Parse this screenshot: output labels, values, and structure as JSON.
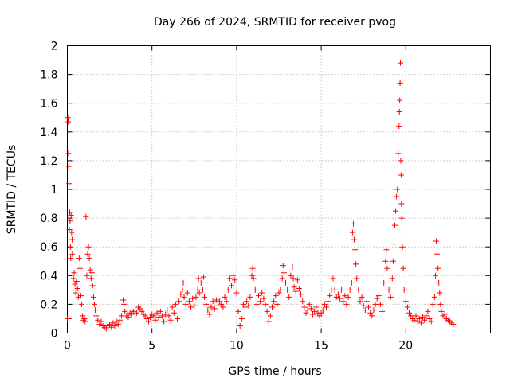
{
  "chart_data": {
    "type": "scatter",
    "title": "Day 266 of 2024, SRMTID for receiver pvog",
    "xlabel": "GPS time / hours",
    "ylabel": "SRMTID / TECUs",
    "xlim": [
      0,
      25
    ],
    "ylim": [
      0,
      2
    ],
    "xticks": [
      "0",
      "5",
      "10",
      "15",
      "20"
    ],
    "yticks": [
      "0",
      "0.2",
      "0.4",
      "0.6",
      "0.8",
      "1",
      "1.2",
      "1.4",
      "1.6",
      "1.8",
      "2"
    ],
    "grid": true,
    "marker": "+",
    "color": "#ff0000",
    "series": [
      {
        "name": "pvog",
        "points": [
          [
            0.0,
            0.1
          ],
          [
            0.03,
            1.5
          ],
          [
            0.05,
            1.47
          ],
          [
            0.07,
            1.25
          ],
          [
            0.08,
            1.16
          ],
          [
            0.1,
            1.04
          ],
          [
            0.1,
            0.1
          ],
          [
            0.12,
            0.72
          ],
          [
            0.14,
            0.84
          ],
          [
            0.16,
            0.78
          ],
          [
            0.18,
            0.6
          ],
          [
            0.2,
            0.52
          ],
          [
            0.22,
            0.82
          ],
          [
            0.25,
            0.7
          ],
          [
            0.28,
            0.65
          ],
          [
            0.3,
            0.55
          ],
          [
            0.33,
            0.46
          ],
          [
            0.36,
            0.38
          ],
          [
            0.4,
            0.42
          ],
          [
            0.45,
            0.34
          ],
          [
            0.5,
            0.28
          ],
          [
            0.55,
            0.36
          ],
          [
            0.6,
            0.31
          ],
          [
            0.65,
            0.25
          ],
          [
            0.7,
            0.52
          ],
          [
            0.75,
            0.45
          ],
          [
            0.8,
            0.26
          ],
          [
            0.85,
            0.2
          ],
          [
            0.9,
            0.12
          ],
          [
            0.95,
            0.09
          ],
          [
            1.0,
            0.1
          ],
          [
            1.05,
            0.08
          ],
          [
            1.1,
            0.81
          ],
          [
            1.15,
            0.4
          ],
          [
            1.2,
            0.55
          ],
          [
            1.25,
            0.6
          ],
          [
            1.3,
            0.52
          ],
          [
            1.35,
            0.44
          ],
          [
            1.4,
            0.38
          ],
          [
            1.45,
            0.42
          ],
          [
            1.5,
            0.33
          ],
          [
            1.55,
            0.25
          ],
          [
            1.6,
            0.2
          ],
          [
            1.65,
            0.16
          ],
          [
            1.7,
            0.12
          ],
          [
            1.8,
            0.09
          ],
          [
            1.9,
            0.06
          ],
          [
            2.0,
            0.08
          ],
          [
            2.1,
            0.05
          ],
          [
            2.2,
            0.04
          ],
          [
            2.3,
            0.03
          ],
          [
            2.4,
            0.05
          ],
          [
            2.5,
            0.06
          ],
          [
            2.6,
            0.04
          ],
          [
            2.7,
            0.07
          ],
          [
            2.8,
            0.05
          ],
          [
            2.9,
            0.08
          ],
          [
            3.0,
            0.06
          ],
          [
            3.1,
            0.09
          ],
          [
            3.2,
            0.12
          ],
          [
            3.3,
            0.23
          ],
          [
            3.35,
            0.2
          ],
          [
            3.4,
            0.15
          ],
          [
            3.5,
            0.12
          ],
          [
            3.6,
            0.11
          ],
          [
            3.7,
            0.14
          ],
          [
            3.8,
            0.13
          ],
          [
            3.9,
            0.15
          ],
          [
            4.0,
            0.16
          ],
          [
            4.1,
            0.14
          ],
          [
            4.2,
            0.18
          ],
          [
            4.3,
            0.17
          ],
          [
            4.4,
            0.15
          ],
          [
            4.5,
            0.13
          ],
          [
            4.6,
            0.12
          ],
          [
            4.7,
            0.1
          ],
          [
            4.8,
            0.08
          ],
          [
            4.9,
            0.11
          ],
          [
            5.0,
            0.13
          ],
          [
            5.1,
            0.12
          ],
          [
            5.2,
            0.09
          ],
          [
            5.3,
            0.14
          ],
          [
            5.4,
            0.11
          ],
          [
            5.5,
            0.15
          ],
          [
            5.6,
            0.12
          ],
          [
            5.7,
            0.08
          ],
          [
            5.8,
            0.13
          ],
          [
            5.9,
            0.16
          ],
          [
            6.0,
            0.12
          ],
          [
            6.1,
            0.09
          ],
          [
            6.2,
            0.18
          ],
          [
            6.3,
            0.14
          ],
          [
            6.4,
            0.2
          ],
          [
            6.5,
            0.1
          ],
          [
            6.6,
            0.22
          ],
          [
            6.7,
            0.27
          ],
          [
            6.8,
            0.3
          ],
          [
            6.85,
            0.35
          ],
          [
            6.9,
            0.25
          ],
          [
            7.0,
            0.2
          ],
          [
            7.1,
            0.28
          ],
          [
            7.2,
            0.22
          ],
          [
            7.3,
            0.18
          ],
          [
            7.4,
            0.24
          ],
          [
            7.5,
            0.19
          ],
          [
            7.6,
            0.25
          ],
          [
            7.7,
            0.3
          ],
          [
            7.75,
            0.38
          ],
          [
            7.8,
            0.28
          ],
          [
            7.9,
            0.35
          ],
          [
            8.0,
            0.3
          ],
          [
            8.05,
            0.39
          ],
          [
            8.1,
            0.25
          ],
          [
            8.2,
            0.2
          ],
          [
            8.3,
            0.16
          ],
          [
            8.4,
            0.13
          ],
          [
            8.5,
            0.18
          ],
          [
            8.6,
            0.22
          ],
          [
            8.7,
            0.17
          ],
          [
            8.8,
            0.23
          ],
          [
            8.9,
            0.19
          ],
          [
            9.0,
            0.22
          ],
          [
            9.1,
            0.2
          ],
          [
            9.2,
            0.18
          ],
          [
            9.3,
            0.25
          ],
          [
            9.4,
            0.22
          ],
          [
            9.5,
            0.3
          ],
          [
            9.6,
            0.38
          ],
          [
            9.7,
            0.33
          ],
          [
            9.8,
            0.4
          ],
          [
            9.9,
            0.37
          ],
          [
            10.0,
            0.28
          ],
          [
            10.1,
            0.15
          ],
          [
            10.2,
            0.05
          ],
          [
            10.3,
            0.1
          ],
          [
            10.4,
            0.2
          ],
          [
            10.5,
            0.18
          ],
          [
            10.6,
            0.22
          ],
          [
            10.7,
            0.19
          ],
          [
            10.8,
            0.25
          ],
          [
            10.9,
            0.4
          ],
          [
            10.95,
            0.45
          ],
          [
            11.0,
            0.38
          ],
          [
            11.1,
            0.3
          ],
          [
            11.2,
            0.2
          ],
          [
            11.3,
            0.26
          ],
          [
            11.4,
            0.22
          ],
          [
            11.5,
            0.28
          ],
          [
            11.6,
            0.24
          ],
          [
            11.7,
            0.2
          ],
          [
            11.8,
            0.15
          ],
          [
            11.9,
            0.08
          ],
          [
            12.0,
            0.12
          ],
          [
            12.1,
            0.18
          ],
          [
            12.2,
            0.22
          ],
          [
            12.3,
            0.26
          ],
          [
            12.4,
            0.2
          ],
          [
            12.5,
            0.28
          ],
          [
            12.6,
            0.3
          ],
          [
            12.7,
            0.38
          ],
          [
            12.75,
            0.47
          ],
          [
            12.8,
            0.42
          ],
          [
            12.9,
            0.35
          ],
          [
            13.0,
            0.3
          ],
          [
            13.1,
            0.25
          ],
          [
            13.2,
            0.4
          ],
          [
            13.3,
            0.46
          ],
          [
            13.35,
            0.38
          ],
          [
            13.4,
            0.32
          ],
          [
            13.5,
            0.29
          ],
          [
            13.6,
            0.37
          ],
          [
            13.7,
            0.31
          ],
          [
            13.8,
            0.27
          ],
          [
            13.9,
            0.22
          ],
          [
            14.0,
            0.18
          ],
          [
            14.1,
            0.14
          ],
          [
            14.2,
            0.16
          ],
          [
            14.3,
            0.2
          ],
          [
            14.4,
            0.17
          ],
          [
            14.5,
            0.13
          ],
          [
            14.6,
            0.15
          ],
          [
            14.7,
            0.18
          ],
          [
            14.8,
            0.14
          ],
          [
            14.9,
            0.12
          ],
          [
            15.0,
            0.14
          ],
          [
            15.1,
            0.16
          ],
          [
            15.2,
            0.2
          ],
          [
            15.3,
            0.18
          ],
          [
            15.4,
            0.22
          ],
          [
            15.5,
            0.26
          ],
          [
            15.6,
            0.3
          ],
          [
            15.7,
            0.38
          ],
          [
            15.8,
            0.3
          ],
          [
            15.9,
            0.25
          ],
          [
            16.0,
            0.27
          ],
          [
            16.1,
            0.24
          ],
          [
            16.2,
            0.3
          ],
          [
            16.3,
            0.22
          ],
          [
            16.4,
            0.26
          ],
          [
            16.5,
            0.2
          ],
          [
            16.6,
            0.25
          ],
          [
            16.7,
            0.3
          ],
          [
            16.8,
            0.35
          ],
          [
            16.85,
            0.7
          ],
          [
            16.9,
            0.76
          ],
          [
            16.95,
            0.65
          ],
          [
            17.0,
            0.58
          ],
          [
            17.05,
            0.48
          ],
          [
            17.1,
            0.38
          ],
          [
            17.2,
            0.3
          ],
          [
            17.3,
            0.22
          ],
          [
            17.4,
            0.25
          ],
          [
            17.5,
            0.19
          ],
          [
            17.6,
            0.16
          ],
          [
            17.7,
            0.22
          ],
          [
            17.8,
            0.18
          ],
          [
            17.9,
            0.14
          ],
          [
            18.0,
            0.12
          ],
          [
            18.1,
            0.16
          ],
          [
            18.2,
            0.2
          ],
          [
            18.3,
            0.24
          ],
          [
            18.4,
            0.26
          ],
          [
            18.5,
            0.2
          ],
          [
            18.6,
            0.15
          ],
          [
            18.7,
            0.35
          ],
          [
            18.8,
            0.5
          ],
          [
            18.85,
            0.58
          ],
          [
            18.9,
            0.45
          ],
          [
            19.0,
            0.3
          ],
          [
            19.1,
            0.25
          ],
          [
            19.2,
            0.38
          ],
          [
            19.25,
            0.5
          ],
          [
            19.3,
            0.62
          ],
          [
            19.35,
            0.75
          ],
          [
            19.4,
            0.85
          ],
          [
            19.45,
            0.95
          ],
          [
            19.5,
            1.0
          ],
          [
            19.55,
            1.25
          ],
          [
            19.6,
            1.44
          ],
          [
            19.62,
            1.54
          ],
          [
            19.64,
            1.62
          ],
          [
            19.66,
            1.74
          ],
          [
            19.68,
            1.88
          ],
          [
            19.7,
            1.2
          ],
          [
            19.72,
            1.1
          ],
          [
            19.74,
            0.9
          ],
          [
            19.76,
            0.8
          ],
          [
            19.8,
            0.6
          ],
          [
            19.85,
            0.45
          ],
          [
            19.9,
            0.3
          ],
          [
            20.0,
            0.22
          ],
          [
            20.1,
            0.18
          ],
          [
            20.2,
            0.14
          ],
          [
            20.3,
            0.12
          ],
          [
            20.4,
            0.1
          ],
          [
            20.5,
            0.09
          ],
          [
            20.6,
            0.12
          ],
          [
            20.7,
            0.08
          ],
          [
            20.8,
            0.1
          ],
          [
            20.9,
            0.07
          ],
          [
            21.0,
            0.11
          ],
          [
            21.1,
            0.09
          ],
          [
            21.2,
            0.12
          ],
          [
            21.3,
            0.15
          ],
          [
            21.4,
            0.1
          ],
          [
            21.5,
            0.08
          ],
          [
            21.6,
            0.2
          ],
          [
            21.7,
            0.25
          ],
          [
            21.75,
            0.4
          ],
          [
            21.8,
            0.64
          ],
          [
            21.85,
            0.55
          ],
          [
            21.9,
            0.45
          ],
          [
            21.95,
            0.35
          ],
          [
            22.0,
            0.28
          ],
          [
            22.05,
            0.2
          ],
          [
            22.1,
            0.15
          ],
          [
            22.2,
            0.12
          ],
          [
            22.3,
            0.13
          ],
          [
            22.4,
            0.1
          ],
          [
            22.5,
            0.09
          ],
          [
            22.6,
            0.08
          ],
          [
            22.7,
            0.07
          ],
          [
            22.8,
            0.06
          ]
        ]
      }
    ]
  }
}
